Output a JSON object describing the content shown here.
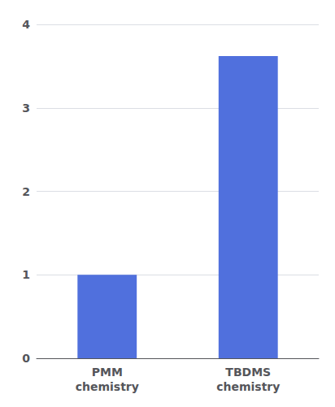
{
  "chart_data": {
    "type": "bar",
    "categories": [
      "PMM\nchemistry",
      "TBDMS\nchemistry"
    ],
    "values": [
      1.0,
      3.62
    ],
    "ylim": [
      0,
      4
    ],
    "yticks": [
      0,
      1,
      2,
      3,
      4
    ],
    "grid": true
  }
}
